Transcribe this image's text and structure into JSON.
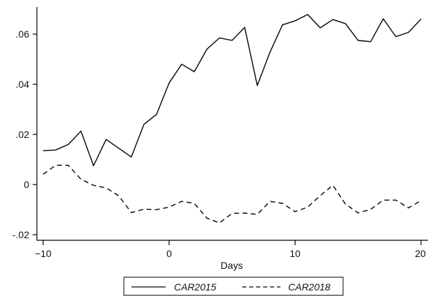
{
  "chart_data": {
    "type": "line",
    "title": "",
    "xlabel": "Days",
    "ylabel": "",
    "xlim": [
      -10,
      20
    ],
    "ylim": [
      -0.02,
      0.07
    ],
    "grid": false,
    "legend_position": "bottom",
    "x_ticks": [
      {
        "value": -10,
        "label": "−10"
      },
      {
        "value": 0,
        "label": "0"
      },
      {
        "value": 10,
        "label": "10"
      },
      {
        "value": 20,
        "label": "20"
      }
    ],
    "y_ticks": [
      {
        "value": -0.02,
        "label": "-.02"
      },
      {
        "value": 0,
        "label": "0"
      },
      {
        "value": 0.02,
        "label": ".02"
      },
      {
        "value": 0.04,
        "label": ".04"
      },
      {
        "value": 0.06,
        "label": ".06"
      }
    ],
    "x": [
      -10,
      -9,
      -8,
      -7,
      -6,
      -5,
      -4,
      -3,
      -2,
      -1,
      0,
      1,
      2,
      3,
      4,
      5,
      6,
      7,
      8,
      9,
      10,
      11,
      12,
      13,
      14,
      15,
      16,
      17,
      18,
      19,
      20
    ],
    "series": [
      {
        "name": "CAR2015",
        "style": "solid",
        "color": "#000000",
        "values": [
          0.0135,
          0.0138,
          0.016,
          0.0213,
          0.0075,
          0.018,
          0.0145,
          0.011,
          0.024,
          0.028,
          0.0405,
          0.048,
          0.045,
          0.054,
          0.0585,
          0.0575,
          0.0627,
          0.0395,
          0.0527,
          0.0637,
          0.0653,
          0.0678,
          0.0625,
          0.0658,
          0.0642,
          0.0575,
          0.057,
          0.0661,
          0.059,
          0.0607,
          0.066
        ]
      },
      {
        "name": "CAR2018",
        "style": "dashed",
        "color": "#000000",
        "values": [
          0.0041,
          0.0077,
          0.0077,
          0.0021,
          -0.0003,
          -0.0013,
          -0.0045,
          -0.0112,
          -0.0098,
          -0.01,
          -0.009,
          -0.0067,
          -0.0075,
          -0.0134,
          -0.0153,
          -0.0115,
          -0.0114,
          -0.0119,
          -0.0067,
          -0.0075,
          -0.0108,
          -0.009,
          -0.0044,
          -0.0003,
          -0.0078,
          -0.0113,
          -0.0099,
          -0.0062,
          -0.0062,
          -0.0093,
          -0.0064
        ]
      }
    ]
  }
}
